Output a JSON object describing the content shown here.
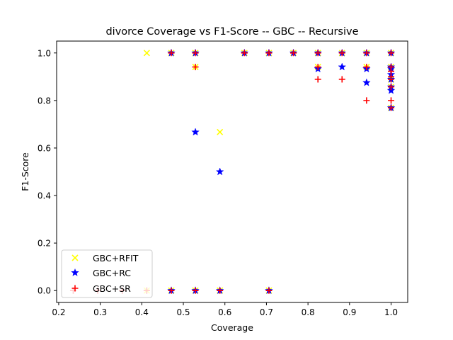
{
  "chart_data": {
    "type": "scatter",
    "title": "divorce Coverage vs F1-Score -- GBC -- Recursive",
    "xlabel": "Coverage",
    "ylabel": "F1-Score",
    "xlim": [
      0.195,
      1.04
    ],
    "ylim": [
      -0.05,
      1.05
    ],
    "xticks": [
      0.2,
      0.3,
      0.4,
      0.5,
      0.6,
      0.7,
      0.8,
      0.9,
      1.0
    ],
    "xtick_labels": [
      "0.2",
      "0.3",
      "0.4",
      "0.5",
      "0.6",
      "0.7",
      "0.8",
      "0.9",
      "1.0"
    ],
    "yticks": [
      0.0,
      0.2,
      0.4,
      0.6,
      0.8,
      1.0
    ],
    "ytick_labels": [
      "0.0",
      "0.2",
      "0.4",
      "0.6",
      "0.8",
      "1.0"
    ],
    "grid": false,
    "legend_position": "lower-left",
    "series": [
      {
        "name": "GBC+RFIT",
        "marker": "x",
        "color": "#ffff00",
        "points": [
          [
            0.412,
            1.0
          ],
          [
            0.471,
            1.0
          ],
          [
            0.529,
            1.0
          ],
          [
            0.529,
            0.941
          ],
          [
            0.588,
            0.667
          ],
          [
            0.647,
            1.0
          ],
          [
            0.706,
            1.0
          ],
          [
            0.765,
            1.0
          ],
          [
            0.824,
            1.0
          ],
          [
            0.824,
            0.941
          ],
          [
            0.882,
            1.0
          ],
          [
            0.941,
            1.0
          ],
          [
            0.941,
            0.941
          ],
          [
            1.0,
            1.0
          ],
          [
            1.0,
            0.941
          ],
          [
            1.0,
            0.889
          ],
          [
            1.0,
            0.857
          ],
          [
            1.0,
            0.769
          ],
          [
            0.412,
            0.0
          ],
          [
            0.471,
            0.0
          ],
          [
            0.529,
            0.0
          ],
          [
            0.588,
            0.0
          ],
          [
            0.706,
            0.0
          ]
        ]
      },
      {
        "name": "GBC+RC",
        "marker": "star",
        "color": "#0000ff",
        "points": [
          [
            0.471,
            1.0
          ],
          [
            0.529,
            1.0
          ],
          [
            0.529,
            0.667
          ],
          [
            0.588,
            0.5
          ],
          [
            0.647,
            1.0
          ],
          [
            0.706,
            1.0
          ],
          [
            0.765,
            1.0
          ],
          [
            0.824,
            1.0
          ],
          [
            0.824,
            0.933
          ],
          [
            0.882,
            1.0
          ],
          [
            0.882,
            0.941
          ],
          [
            0.941,
            1.0
          ],
          [
            0.941,
            0.933
          ],
          [
            0.941,
            0.875
          ],
          [
            1.0,
            1.0
          ],
          [
            1.0,
            0.941
          ],
          [
            1.0,
            0.933
          ],
          [
            1.0,
            0.909
          ],
          [
            1.0,
            0.889
          ],
          [
            1.0,
            0.857
          ],
          [
            1.0,
            0.842
          ],
          [
            1.0,
            0.769
          ],
          [
            0.471,
            0.0
          ],
          [
            0.529,
            0.0
          ],
          [
            0.588,
            0.0
          ],
          [
            0.706,
            0.0
          ]
        ]
      },
      {
        "name": "GBC+SR",
        "marker": "plus",
        "color": "#ff0000",
        "points": [
          [
            0.471,
            1.0
          ],
          [
            0.529,
            1.0
          ],
          [
            0.529,
            0.941
          ],
          [
            0.647,
            1.0
          ],
          [
            0.706,
            1.0
          ],
          [
            0.765,
            1.0
          ],
          [
            0.824,
            1.0
          ],
          [
            0.824,
            0.941
          ],
          [
            0.824,
            0.889
          ],
          [
            0.882,
            1.0
          ],
          [
            0.882,
            0.889
          ],
          [
            0.941,
            1.0
          ],
          [
            0.941,
            0.941
          ],
          [
            0.941,
            0.8
          ],
          [
            1.0,
            1.0
          ],
          [
            1.0,
            0.941
          ],
          [
            1.0,
            0.923
          ],
          [
            1.0,
            0.9
          ],
          [
            1.0,
            0.889
          ],
          [
            1.0,
            0.857
          ],
          [
            1.0,
            0.8
          ],
          [
            1.0,
            0.769
          ],
          [
            0.235,
            0.0
          ],
          [
            0.294,
            0.0
          ],
          [
            0.353,
            0.0
          ],
          [
            0.412,
            0.0
          ],
          [
            0.471,
            0.0
          ],
          [
            0.529,
            0.0
          ],
          [
            0.588,
            0.0
          ],
          [
            0.706,
            0.0
          ]
        ]
      }
    ]
  }
}
